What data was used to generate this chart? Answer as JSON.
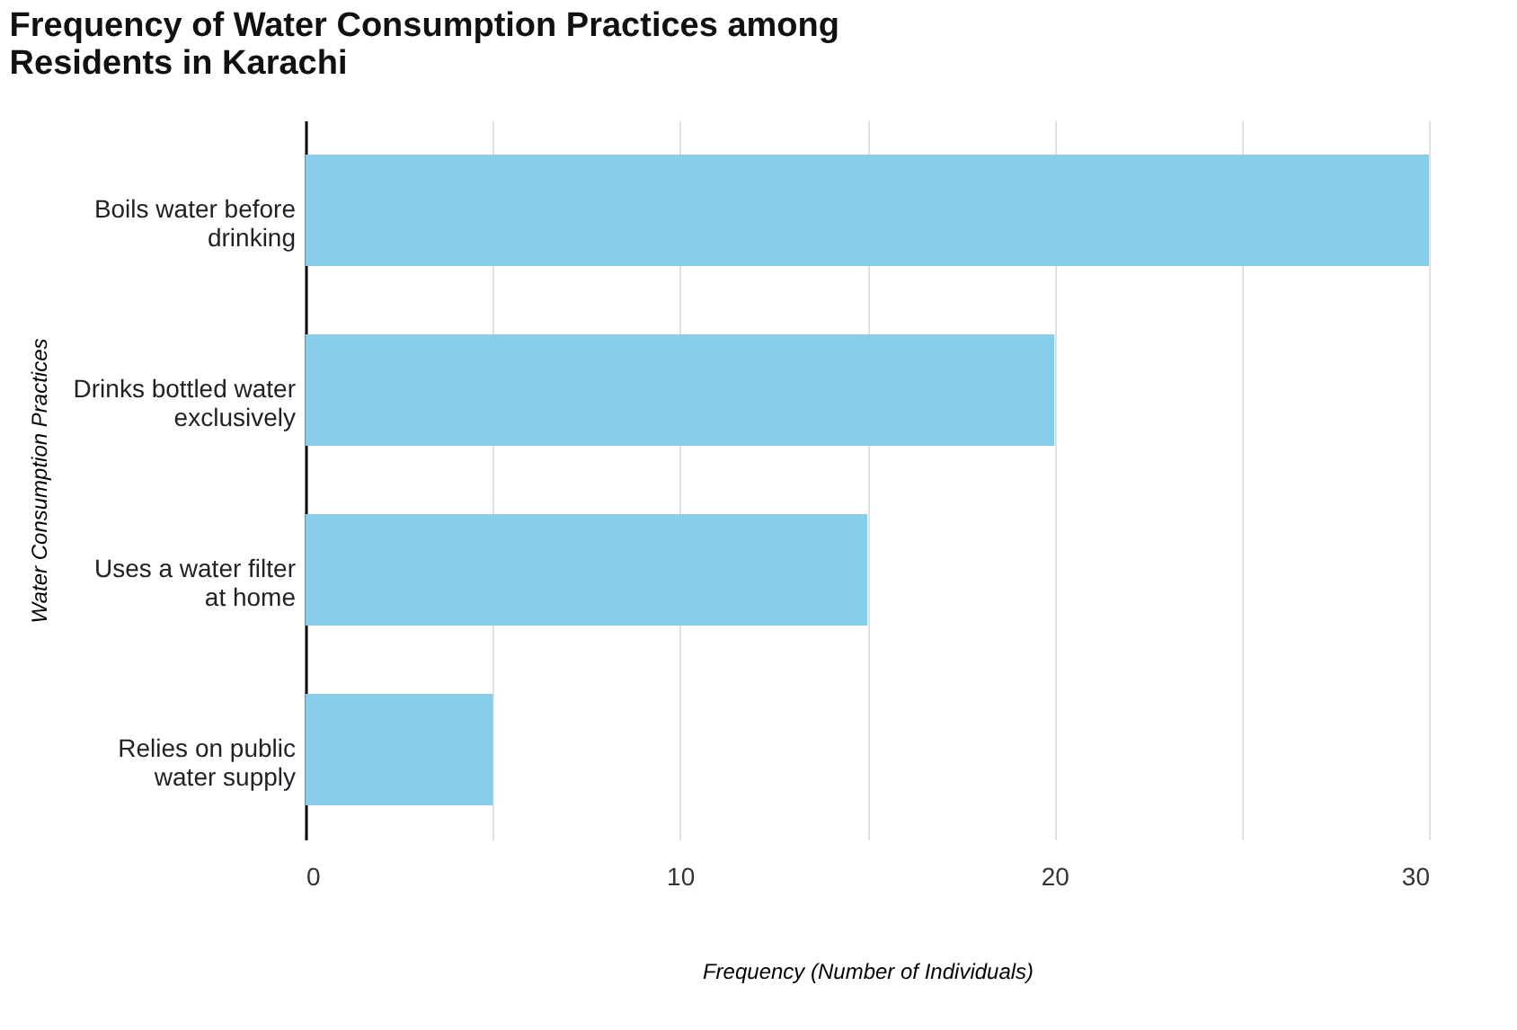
{
  "chart_data": {
    "type": "bar",
    "orientation": "horizontal",
    "title": "Frequency of Water Consumption Practices among Residents in Karachi",
    "xlabel": "Frequency (Number of Individuals)",
    "ylabel": "Water Consumption Practices",
    "categories": [
      "Boils water before drinking",
      "Drinks bottled water exclusively",
      "Uses a water filter at home",
      "Relies on public water supply"
    ],
    "values": [
      30,
      20,
      15,
      5
    ],
    "color": "#87ceeb",
    "xlim": [
      0,
      30
    ],
    "xticks": [
      0,
      {
        "value": 5,
        "label": null
      },
      10,
      {
        "value": 15,
        "label": null
      },
      20,
      {
        "value": 25,
        "label": null
      },
      30
    ],
    "grid": "x"
  }
}
